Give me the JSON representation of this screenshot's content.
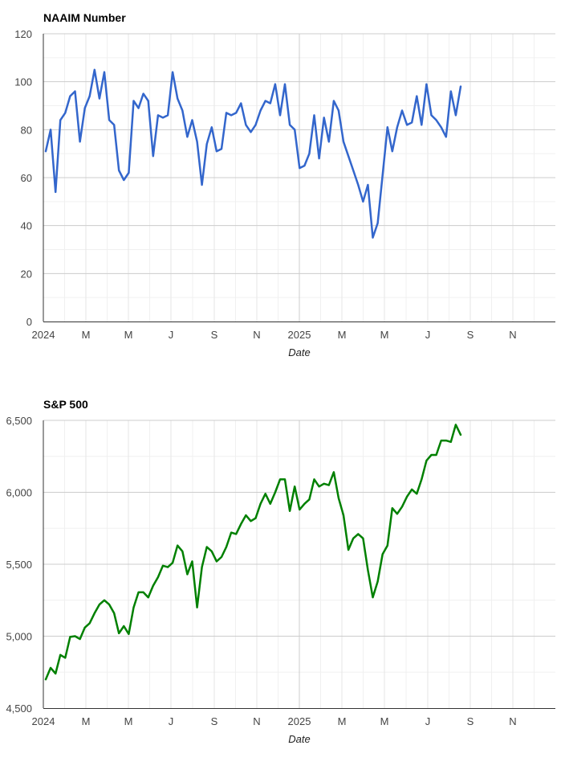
{
  "chart_data": [
    {
      "type": "line",
      "title": "NAAIM Number",
      "xlabel": "Date",
      "ylabel": "",
      "ylim": [
        0,
        120
      ],
      "y_ticks": [
        "0",
        "20",
        "40",
        "60",
        "80",
        "100",
        "120"
      ],
      "x_tick_labels": [
        "2024",
        "M",
        "M",
        "J",
        "S",
        "N",
        "2025",
        "M",
        "M",
        "J",
        "S",
        "N"
      ],
      "line_color": "#3366cc",
      "series": [
        {
          "name": "NAAIM Number",
          "values": [
            71,
            80,
            54,
            84,
            87,
            94,
            96,
            75,
            89,
            94,
            105,
            93,
            104,
            84,
            82,
            63,
            59,
            62,
            92,
            89,
            95,
            92,
            69,
            86,
            85,
            86,
            104,
            93,
            88,
            77,
            84,
            75,
            57,
            74,
            81,
            71,
            72,
            87,
            86,
            87,
            91,
            82,
            79,
            82,
            88,
            92,
            91,
            99,
            86,
            99,
            82,
            80,
            64,
            65,
            70,
            86,
            68,
            85,
            75,
            92,
            88,
            75,
            69,
            63,
            57,
            50,
            57,
            35,
            41,
            61,
            81,
            71,
            81,
            88,
            82,
            83,
            94,
            82,
            99,
            86,
            84,
            81,
            77,
            96,
            86,
            98
          ]
        }
      ]
    },
    {
      "type": "line",
      "title": "S&P 500",
      "xlabel": "Date",
      "ylabel": "",
      "ylim": [
        4500,
        6500
      ],
      "y_ticks": [
        "4,500",
        "5,000",
        "5,500",
        "6,000",
        "6,500"
      ],
      "x_tick_labels": [
        "2024",
        "M",
        "M",
        "J",
        "S",
        "N",
        "2025",
        "M",
        "M",
        "J",
        "S",
        "N"
      ],
      "line_color": "#008000",
      "series": [
        {
          "name": "S&P 500",
          "values": [
            4700,
            4780,
            4740,
            4870,
            4850,
            4995,
            5000,
            4980,
            5060,
            5090,
            5160,
            5220,
            5250,
            5220,
            5160,
            5020,
            5070,
            5015,
            5200,
            5305,
            5305,
            5270,
            5350,
            5410,
            5490,
            5480,
            5510,
            5630,
            5590,
            5430,
            5520,
            5200,
            5480,
            5620,
            5590,
            5520,
            5550,
            5620,
            5720,
            5710,
            5780,
            5840,
            5800,
            5820,
            5920,
            5990,
            5920,
            6000,
            6090,
            6090,
            5870,
            6040,
            5880,
            5920,
            5950,
            6090,
            6040,
            6060,
            6050,
            6140,
            5960,
            5840,
            5600,
            5680,
            5710,
            5680,
            5460,
            5270,
            5380,
            5570,
            5630,
            5890,
            5850,
            5900,
            5970,
            6020,
            5990,
            6090,
            6220,
            6260,
            6260,
            6360,
            6360,
            6350,
            6470,
            6400
          ]
        }
      ]
    }
  ]
}
